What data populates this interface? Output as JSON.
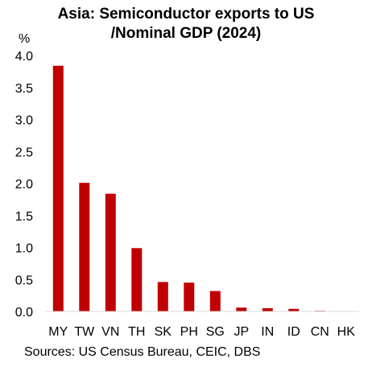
{
  "title_line1": "Asia: Semiconductor exports to US",
  "title_line2": "/Nominal GDP (2024)",
  "unit_label": "%",
  "source": "Sources: US Census Bureau, CEIC, DBS",
  "chart_data": {
    "type": "bar",
    "title": "Asia: Semiconductor exports to US /Nominal GDP (2024)",
    "ylabel": "%",
    "xlabel": "",
    "categories": [
      "MY",
      "TW",
      "VN",
      "TH",
      "SK",
      "PH",
      "SG",
      "JP",
      "IN",
      "ID",
      "CN",
      "HK"
    ],
    "values": [
      3.84,
      2.01,
      1.84,
      0.99,
      0.46,
      0.45,
      0.32,
      0.06,
      0.05,
      0.04,
      0.01,
      0.0
    ],
    "ylim": [
      0,
      4.0
    ],
    "yticks": [
      "0.0",
      "0.5",
      "1.0",
      "1.5",
      "2.0",
      "2.5",
      "3.0",
      "3.5",
      "4.0"
    ],
    "bar_color": "#c00000",
    "grid": false,
    "legend": "none"
  }
}
